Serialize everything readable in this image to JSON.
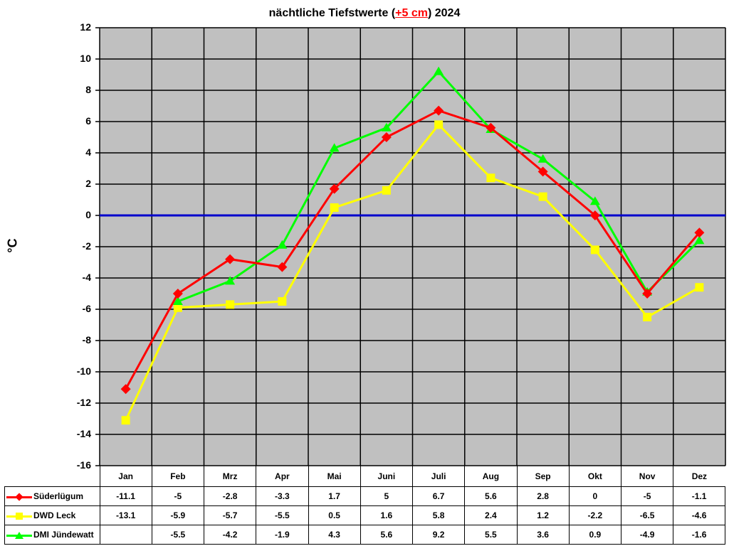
{
  "chart_data": {
    "type": "line",
    "title": "nächtliche Tiefstwerte (+5 cm) 2024",
    "title_parts": {
      "before": "nächtliche Tiefstwerte (",
      "highlight": "+5 cm",
      "after": ") 2024"
    },
    "xlabel": "",
    "ylabel": "°C",
    "ylim": [
      -16,
      12
    ],
    "yticks": [
      12,
      10,
      8,
      6,
      4,
      2,
      0,
      -2,
      -4,
      -6,
      -8,
      -10,
      -12,
      -14,
      -16
    ],
    "grid": true,
    "zero_line_color": "#0000cc",
    "plot_background": "#c0c0c0",
    "legend_position": "data-table-left",
    "categories": [
      "Jan",
      "Feb",
      "Mrz",
      "Apr",
      "Mai",
      "Juni",
      "Juli",
      "Aug",
      "Sep",
      "Okt",
      "Nov",
      "Dez"
    ],
    "series": [
      {
        "name": "Süderlügum",
        "color": "#ff0000",
        "marker": "diamond",
        "values": [
          -11.1,
          -5,
          -2.8,
          -3.3,
          1.7,
          5,
          6.7,
          5.6,
          2.8,
          0,
          -5,
          -1.1
        ]
      },
      {
        "name": "DWD Leck",
        "color": "#ffff00",
        "marker": "square",
        "values": [
          -13.1,
          -5.9,
          -5.7,
          -5.5,
          0.5,
          1.6,
          5.8,
          2.4,
          1.2,
          -2.2,
          -6.5,
          -4.6
        ]
      },
      {
        "name": "DMI Jündewatt",
        "color": "#00ff00",
        "marker": "triangle",
        "values": [
          null,
          -5.5,
          -4.2,
          -1.9,
          4.3,
          5.6,
          9.2,
          5.5,
          3.6,
          0.9,
          -4.9,
          -1.6
        ]
      }
    ]
  }
}
